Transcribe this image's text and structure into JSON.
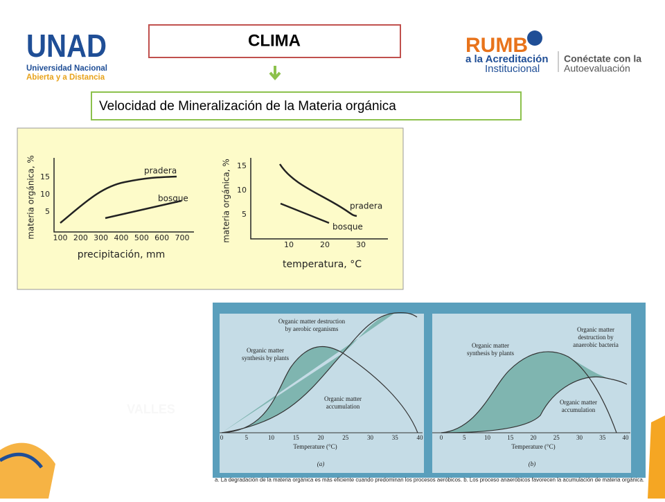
{
  "header": {
    "logo_left": {
      "name": "UNAD",
      "line1": "Universidad Nacional",
      "line2": "Abierta y a Distancia"
    },
    "title": "CLIMA",
    "logo_right": {
      "brand": "RUMB",
      "line1": "a la Acreditación",
      "line2": "Institucional",
      "line3": "Conéctate con la",
      "line4": "Autoevaluación"
    }
  },
  "subtitle": "Velocidad de Mineralización de la Materia orgánica",
  "figure1": {
    "left": {
      "y_label": "materia orgánica, %",
      "yticks": [
        5,
        10,
        15
      ],
      "x_label": "precipitación, mm",
      "xticks": [
        100,
        200,
        300,
        400,
        500,
        600,
        700
      ],
      "series": [
        "pradera",
        "bosque"
      ]
    },
    "right": {
      "y_label": "materia orgánica, %",
      "yticks": [
        5,
        10,
        15
      ],
      "x_label": "temperatura, °C",
      "xticks": [
        10,
        20,
        30
      ],
      "series": [
        "pradera",
        "bosque"
      ]
    }
  },
  "figure2": {
    "a": {
      "annotations": [
        [
          "Organic matter destruction",
          "by aerobic organisms"
        ],
        [
          "Organic matter",
          "synthesis by plants"
        ],
        [
          "Organic matter",
          "accumulation"
        ]
      ],
      "xticks": [
        0,
        5,
        10,
        15,
        20,
        25,
        30,
        35,
        40
      ],
      "x_label": "Temperature (°C)",
      "panel": "(a)"
    },
    "b": {
      "annotations": [
        [
          "Organic matter",
          "destruction by",
          "anaerobic bacteria"
        ],
        [
          "Organic matter",
          "synthesis by plants"
        ],
        [
          "Organic matter",
          "accumulation"
        ]
      ],
      "xticks": [
        0,
        5,
        10,
        15,
        20,
        25,
        30,
        35,
        40
      ],
      "x_label": "Temperature (°C)",
      "panel": "(b)"
    },
    "caption": "a. La degradación de la materia orgánica es más eficiente cuando predominan los procesos aeróbicos. b. Los proceso anaeróbicos favorecen la acumulación de materia orgánica."
  },
  "watermark": "VALLES"
}
